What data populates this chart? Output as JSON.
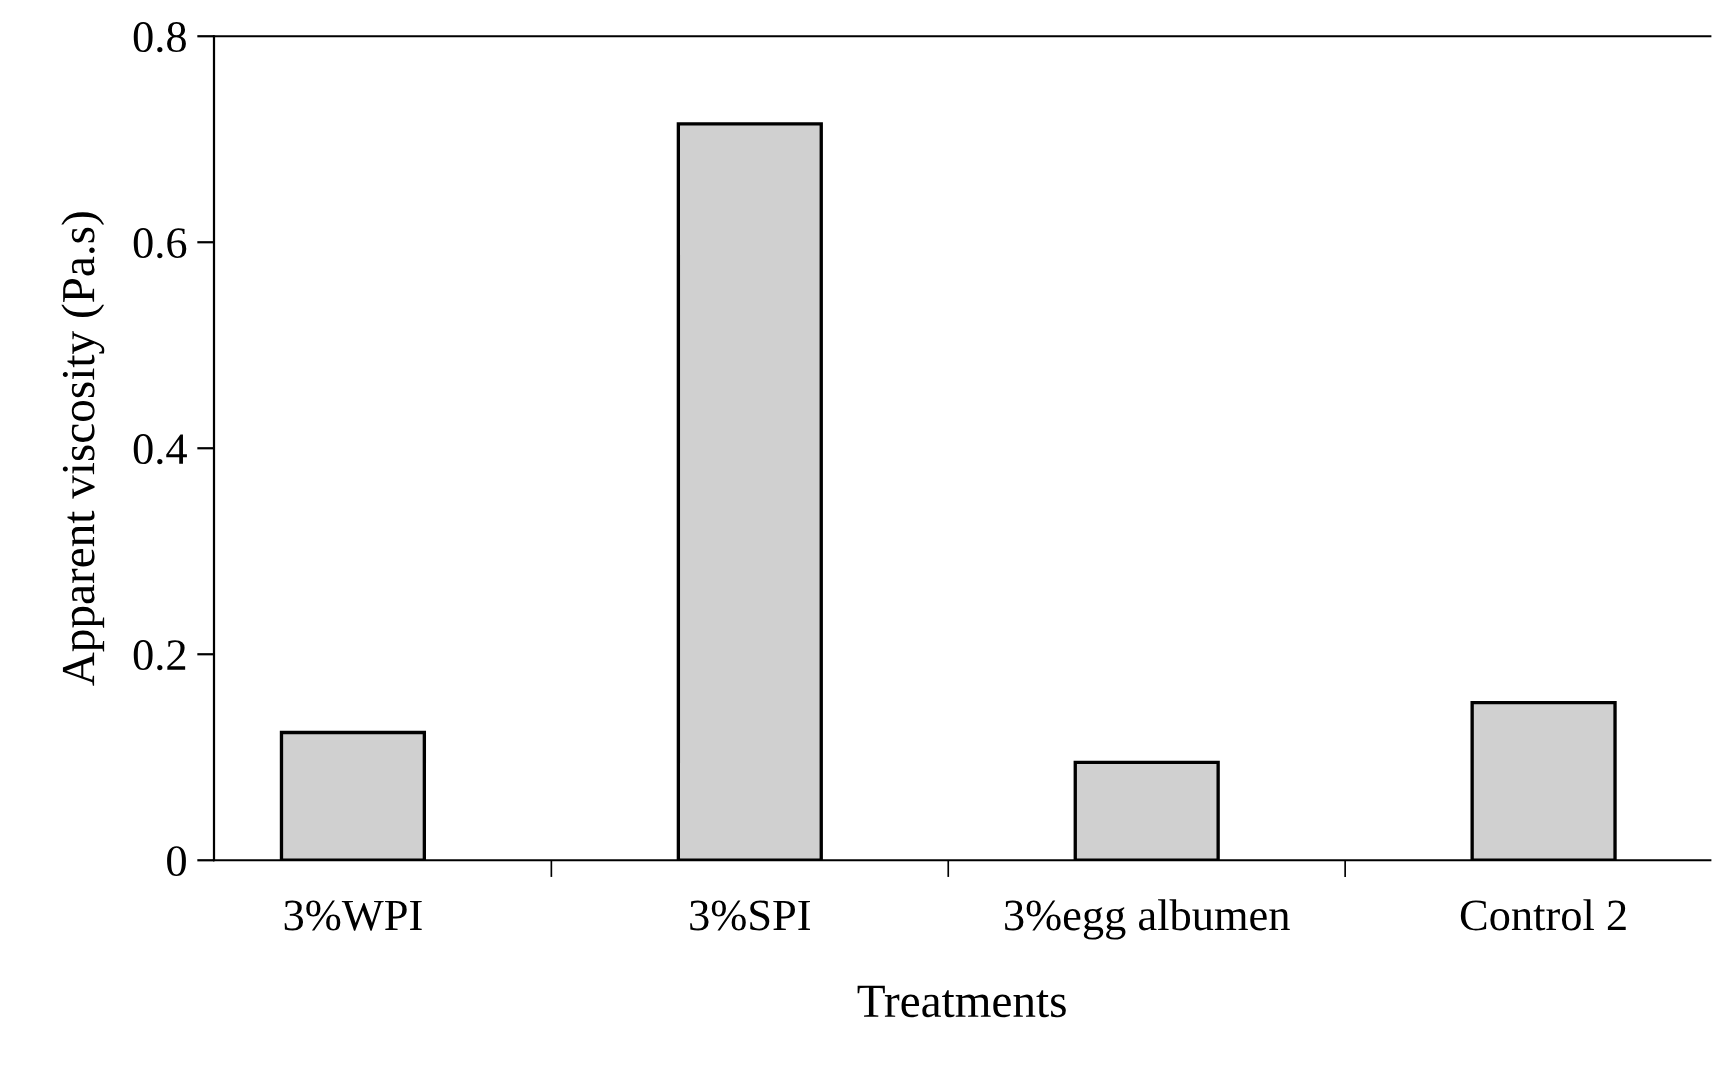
{
  "chart_data": {
    "type": "bar",
    "xlabel": "Treatments",
    "ylabel": "Apparent viscosity (Pa.s)",
    "categories": [
      "3%WPI",
      "3%SPI",
      "3%egg albumen",
      "Control 2"
    ],
    "values": [
      0.124,
      0.715,
      0.095,
      0.153
    ],
    "color": "#d0d0d0",
    "ylim": [
      0,
      0.8
    ],
    "yticks": [
      0,
      0.2,
      0.4,
      0.6,
      0.8
    ],
    "grid": false,
    "legend": false
  }
}
